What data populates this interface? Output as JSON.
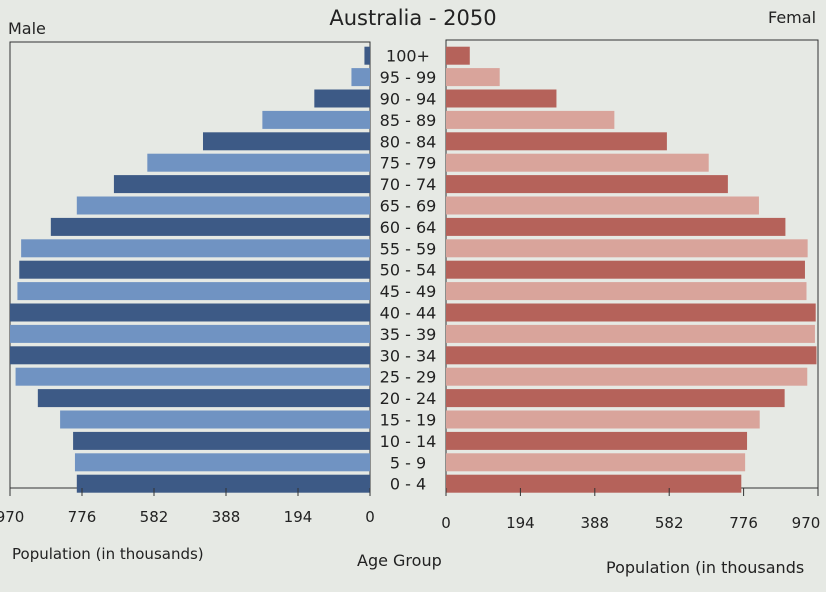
{
  "labels": {
    "male": "Male",
    "female": "Femal",
    "left_xlabel": "Population (in thousands)",
    "right_xlabel": "Population (in thousands",
    "center": "Age Group"
  },
  "colors": {
    "male_dark": "#3d5a86",
    "male_light": "#7093c2",
    "female_dark": "#b5625a",
    "female_light": "#d9a49b",
    "background": "#e6e9e4"
  },
  "chart_data": {
    "type": "bar",
    "subtype": "population-pyramid",
    "title": "Australia - 2050",
    "categories": [
      "0 - 4",
      "5 - 9",
      "10 - 14",
      "15 - 19",
      "20 - 24",
      "25 - 29",
      "30 - 34",
      "35 - 39",
      "40 - 44",
      "45 - 49",
      "50 - 54",
      "55 - 59",
      "60 - 64",
      "65 - 69",
      "70 - 74",
      "75 - 79",
      "80 - 84",
      "85 - 89",
      "90 - 94",
      "95 - 99",
      "100+"
    ],
    "series": [
      {
        "name": "Male",
        "side": "left",
        "values": [
          790,
          795,
          800,
          835,
          895,
          955,
          970,
          970,
          970,
          950,
          945,
          940,
          860,
          790,
          690,
          600,
          450,
          290,
          150,
          50,
          15
        ]
      },
      {
        "name": "Female",
        "side": "right",
        "values": [
          770,
          780,
          785,
          818,
          883,
          942,
          966,
          962,
          964,
          940,
          936,
          943,
          885,
          816,
          735,
          685,
          576,
          439,
          288,
          140,
          62
        ]
      }
    ],
    "xlim": [
      0,
      970
    ],
    "xticks": [
      970,
      776,
      582,
      388,
      194,
      0
    ],
    "right_xticks": [
      0,
      194,
      388,
      582,
      776,
      970
    ],
    "right_xtick_labels": [
      "0",
      "194",
      "388",
      "582",
      "776",
      "970"
    ]
  }
}
